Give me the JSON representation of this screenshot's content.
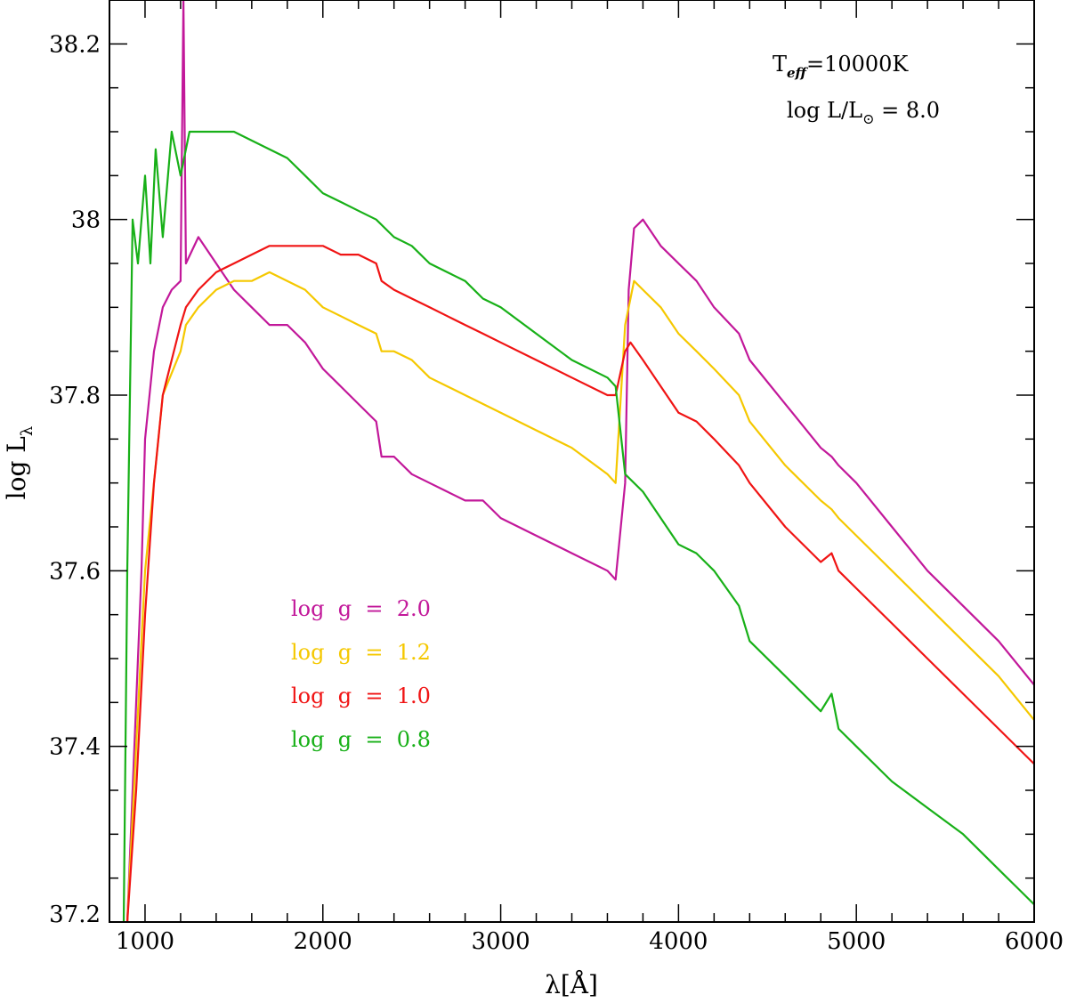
{
  "chart_data": {
    "type": "line",
    "xlabel": "λ[Å]",
    "ylabel": "log L",
    "ylabel_sub": "λ",
    "xlim": [
      800,
      6000
    ],
    "ylim": [
      37.2,
      38.25
    ],
    "x_ticks": [
      1000,
      2000,
      3000,
      4000,
      5000,
      6000
    ],
    "y_ticks": [
      37.2,
      37.4,
      37.6,
      37.8,
      38.0,
      38.2
    ],
    "x_tick_labels": [
      "1000",
      "2000",
      "3000",
      "4000",
      "5000",
      "6000"
    ],
    "y_tick_labels": [
      "37.2",
      "37.4",
      "37.6",
      "37.8",
      "38",
      "38.2"
    ],
    "annotations": {
      "teff_main": "T",
      "teff_sub": "eff",
      "teff_value": "=10000K",
      "lum_main": "log  L/L",
      "lum_sub": "⊙",
      "lum_value": " = 8.0"
    },
    "legend_placement": "lower-left inside plot",
    "grid": false,
    "series": [
      {
        "name": "log  g  =  2.0",
        "color": "#c2189a",
        "x": [
          900,
          920,
          950,
          980,
          1000,
          1050,
          1100,
          1150,
          1200,
          1216,
          1230,
          1300,
          1400,
          1500,
          1600,
          1700,
          1800,
          1900,
          2000,
          2100,
          2200,
          2300,
          2330,
          2400,
          2500,
          2600,
          2700,
          2800,
          2900,
          3000,
          3200,
          3400,
          3600,
          3646,
          3700,
          3720,
          3750,
          3800,
          3900,
          4000,
          4101,
          4200,
          4340,
          4400,
          4600,
          4800,
          4861,
          4900,
          5000,
          5200,
          5400,
          5600,
          5800,
          6000
        ],
        "y": [
          37.2,
          37.3,
          37.45,
          37.6,
          37.75,
          37.85,
          37.9,
          37.92,
          37.93,
          38.25,
          37.95,
          37.98,
          37.95,
          37.92,
          37.9,
          37.88,
          37.88,
          37.86,
          37.83,
          37.81,
          37.79,
          37.77,
          37.73,
          37.73,
          37.71,
          37.7,
          37.69,
          37.68,
          37.68,
          37.66,
          37.64,
          37.62,
          37.6,
          37.59,
          37.7,
          37.92,
          37.99,
          38.0,
          37.97,
          37.95,
          37.93,
          37.9,
          37.87,
          37.84,
          37.79,
          37.74,
          37.73,
          37.72,
          37.7,
          37.65,
          37.6,
          37.56,
          37.52,
          37.47
        ]
      },
      {
        "name": "log  g  =  1.2",
        "color": "#f5c800",
        "x": [
          900,
          1000,
          1100,
          1200,
          1230,
          1300,
          1400,
          1500,
          1600,
          1700,
          1800,
          1900,
          2000,
          2100,
          2200,
          2300,
          2330,
          2400,
          2500,
          2600,
          2700,
          2800,
          2900,
          3000,
          3200,
          3400,
          3600,
          3646,
          3700,
          3750,
          3800,
          3900,
          4000,
          4101,
          4200,
          4340,
          4400,
          4600,
          4800,
          4861,
          4900,
          5000,
          5200,
          5400,
          5600,
          5800,
          6000
        ],
        "y": [
          37.2,
          37.6,
          37.8,
          37.85,
          37.88,
          37.9,
          37.92,
          37.93,
          37.93,
          37.94,
          37.93,
          37.92,
          37.9,
          37.89,
          37.88,
          37.87,
          37.85,
          37.85,
          37.84,
          37.82,
          37.81,
          37.8,
          37.79,
          37.78,
          37.76,
          37.74,
          37.71,
          37.7,
          37.88,
          37.93,
          37.92,
          37.9,
          37.87,
          37.85,
          37.83,
          37.8,
          37.77,
          37.72,
          37.68,
          37.67,
          37.66,
          37.64,
          37.6,
          37.56,
          37.52,
          37.48,
          37.43
        ]
      },
      {
        "name": "log  g  =  1.0",
        "color": "#f01414",
        "x": [
          900,
          950,
          1000,
          1050,
          1100,
          1150,
          1200,
          1230,
          1300,
          1400,
          1500,
          1600,
          1700,
          1800,
          1900,
          2000,
          2100,
          2200,
          2300,
          2330,
          2400,
          2500,
          2600,
          2700,
          2800,
          2900,
          3000,
          3200,
          3400,
          3600,
          3646,
          3700,
          3730,
          3800,
          3900,
          4000,
          4101,
          4200,
          4340,
          4400,
          4600,
          4800,
          4861,
          4900,
          5000,
          5200,
          5400,
          5600,
          5800,
          6000
        ],
        "y": [
          37.2,
          37.35,
          37.55,
          37.7,
          37.8,
          37.84,
          37.88,
          37.9,
          37.92,
          37.94,
          37.95,
          37.96,
          37.97,
          37.97,
          37.97,
          37.97,
          37.96,
          37.96,
          37.95,
          37.93,
          37.92,
          37.91,
          37.9,
          37.89,
          37.88,
          37.87,
          37.86,
          37.84,
          37.82,
          37.8,
          37.8,
          37.85,
          37.86,
          37.84,
          37.81,
          37.78,
          37.77,
          37.75,
          37.72,
          37.7,
          37.65,
          37.61,
          37.62,
          37.6,
          37.58,
          37.54,
          37.5,
          37.46,
          37.42,
          37.38
        ]
      },
      {
        "name": "log  g  =  0.8",
        "color": "#18b018",
        "x": [
          880,
          900,
          930,
          960,
          1000,
          1030,
          1060,
          1100,
          1150,
          1200,
          1250,
          1300,
          1400,
          1500,
          1600,
          1700,
          1800,
          1900,
          2000,
          2100,
          2200,
          2300,
          2400,
          2500,
          2600,
          2700,
          2800,
          2900,
          3000,
          3200,
          3400,
          3600,
          3646,
          3700,
          3800,
          3900,
          4000,
          4100,
          4200,
          4340,
          4400,
          4600,
          4800,
          4861,
          4900,
          5000,
          5200,
          5400,
          5600,
          5800,
          5850,
          5900,
          6000
        ],
        "y": [
          37.2,
          37.6,
          38.0,
          37.95,
          38.05,
          37.95,
          38.08,
          37.98,
          38.1,
          38.05,
          38.1,
          38.1,
          38.1,
          38.1,
          38.09,
          38.08,
          38.07,
          38.05,
          38.03,
          38.02,
          38.01,
          38.0,
          37.98,
          37.97,
          37.95,
          37.94,
          37.93,
          37.91,
          37.9,
          37.87,
          37.84,
          37.82,
          37.81,
          37.71,
          37.69,
          37.66,
          37.63,
          37.62,
          37.6,
          37.56,
          37.52,
          37.48,
          37.44,
          37.46,
          37.42,
          37.4,
          37.36,
          37.33,
          37.3,
          37.26,
          37.25,
          37.24,
          37.22
        ]
      }
    ]
  }
}
